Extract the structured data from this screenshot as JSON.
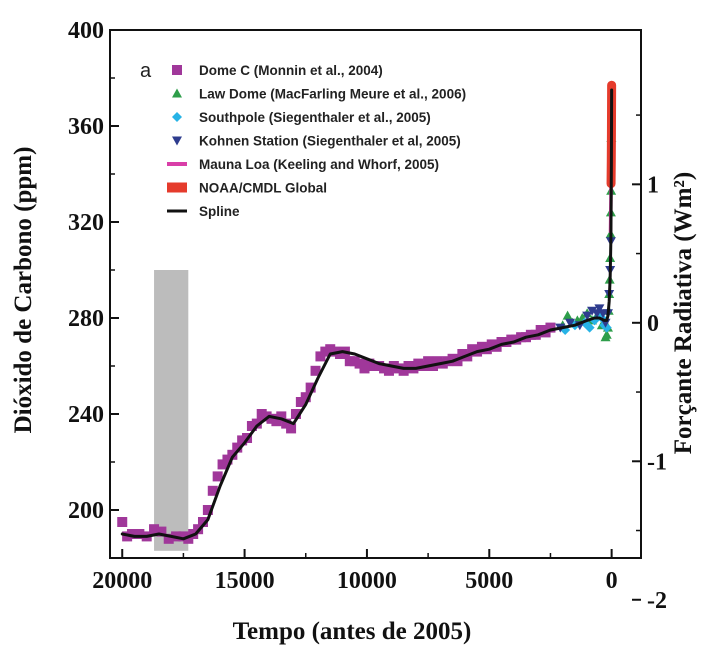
{
  "chart_data": {
    "type": "scatter",
    "panel_label": "a",
    "xlabel": "Tempo (antes de 2005)",
    "ylabel": "Dióxido de Carbono (ppm)",
    "y2label": "Forçante Radiativa (Wm²)",
    "xlim": [
      20500,
      -1200
    ],
    "ylim": [
      180,
      400
    ],
    "y2lim": [
      -2.45,
      1.95
    ],
    "x_ticks": [
      "20000",
      "15000",
      "10000",
      "5000",
      "0"
    ],
    "x_tick_values": [
      20000,
      15000,
      10000,
      5000,
      0
    ],
    "y_ticks": [
      "200",
      "240",
      "280",
      "320",
      "360",
      "400"
    ],
    "y_tick_values": [
      200,
      240,
      280,
      320,
      360,
      400
    ],
    "y2_ticks": [
      "-2",
      "-1",
      "0",
      "1"
    ],
    "y2_tick_values": [
      -2,
      -1,
      0,
      1
    ],
    "y2_zero_at_ppm": 278,
    "y2_ppm_per_unit": 57.7,
    "grid": false,
    "legend_position": "top-left",
    "legend": [
      {
        "label": "Dome C (Monnin et al., 2004)",
        "marker": "square",
        "color": "#a0379a"
      },
      {
        "label": "Law Dome (MacFarling Meure et al., 2006)",
        "marker": "triangle-up",
        "color": "#2e9e4a"
      },
      {
        "label": "Southpole (Siegenthaler et al., 2005)",
        "marker": "diamond",
        "color": "#27b3e6"
      },
      {
        "label": "Kohnen Station (Siegenthaler et al, 2005)",
        "marker": "triangle-down",
        "color": "#2e3c8e"
      },
      {
        "label": "Mauna Loa (Keeling and Whorf, 2005)",
        "marker": "line",
        "color": "#d93ea8"
      },
      {
        "label": "NOAA/CMDL Global",
        "marker": "band",
        "color": "#e53b2c"
      },
      {
        "label": "Spline",
        "marker": "line",
        "color": "#111111"
      }
    ],
    "shaded_region": {
      "x": [
        18700,
        17300
      ],
      "y": [
        183,
        300
      ],
      "color": "#bcbcbc"
    },
    "series": [
      {
        "name": "Dome C (Monnin et al., 2004)",
        "color": "#a0379a",
        "x": [
          20000,
          19800,
          19600,
          19300,
          19000,
          18700,
          18400,
          18100,
          17800,
          17500,
          17300,
          17100,
          16900,
          16700,
          16500,
          16300,
          16100,
          15900,
          15700,
          15500,
          15300,
          15100,
          14900,
          14700,
          14500,
          14300,
          14100,
          13900,
          13700,
          13500,
          13300,
          13100,
          12900,
          12700,
          12500,
          12300,
          12100,
          11900,
          11700,
          11500,
          11300,
          11100,
          10900,
          10700,
          10500,
          10300,
          10100,
          9900,
          9700,
          9500,
          9300,
          9100,
          8900,
          8700,
          8500,
          8300,
          8100,
          7900,
          7700,
          7500,
          7300,
          7100,
          6900,
          6700,
          6500,
          6300,
          6100,
          5900,
          5700,
          5500,
          5300,
          5100,
          4900,
          4700,
          4500,
          4300,
          4100,
          3900,
          3700,
          3500,
          3300,
          3100,
          2900,
          2700,
          2500
        ],
        "y": [
          195,
          189,
          190,
          190,
          189,
          192,
          191,
          188,
          189,
          189,
          188,
          190,
          192,
          195,
          200,
          208,
          214,
          219,
          221,
          223,
          226,
          229,
          230,
          235,
          236,
          240,
          239,
          238,
          237,
          239,
          236,
          234,
          240,
          245,
          247,
          251,
          258,
          264,
          266,
          267,
          266,
          265,
          266,
          262,
          262,
          261,
          259,
          261,
          260,
          260,
          259,
          258,
          260,
          259,
          258,
          260,
          259,
          261,
          260,
          262,
          260,
          262,
          261,
          262,
          263,
          262,
          265,
          264,
          267,
          266,
          268,
          267,
          269,
          268,
          270,
          270,
          271,
          271,
          272,
          272,
          273,
          273,
          275,
          274,
          276
        ]
      },
      {
        "name": "Law Dome (MacFarling Meure et al., 2006)",
        "color": "#2e9e4a",
        "x": [
          2000,
          1800,
          1600,
          1400,
          1200,
          1000,
          800,
          600,
          400,
          300,
          250,
          200,
          150,
          120,
          100,
          80,
          60,
          40,
          30,
          20,
          10
        ],
        "y": [
          277,
          281,
          278,
          279,
          280,
          282,
          279,
          281,
          277,
          278,
          272,
          273,
          276,
          283,
          290,
          296,
          305,
          315,
          324,
          333,
          355
        ]
      },
      {
        "name": "Southpole (Siegenthaler et al., 2005)",
        "color": "#27b3e6",
        "x": [
          1900,
          1500,
          1100,
          900,
          700,
          500,
          400,
          300,
          200
        ],
        "y": [
          275,
          277,
          278,
          276,
          279,
          282,
          280,
          277,
          276
        ]
      },
      {
        "name": "Kohnen Station (Siegenthaler et al, 2005)",
        "color": "#2e3c8e",
        "x": [
          2100,
          1700,
          1300,
          1000,
          800,
          600,
          500,
          350,
          250,
          150,
          100,
          60,
          30
        ],
        "y": [
          276,
          278,
          277,
          281,
          283,
          282,
          284,
          282,
          278,
          282,
          290,
          300,
          312
        ]
      },
      {
        "name": "Mauna Loa (Keeling and Whorf, 2005)",
        "color": "#d93ea8",
        "x": [
          47,
          40,
          30,
          20,
          10,
          0
        ],
        "y": [
          316,
          321,
          329,
          339,
          353,
          372
        ]
      },
      {
        "name": "NOAA/CMDL Global",
        "color": "#e53b2c",
        "x": [
          24,
          15,
          8,
          0
        ],
        "y": [
          336,
          345,
          357,
          377
        ]
      },
      {
        "name": "Spline",
        "color": "#111111",
        "x": [
          20000,
          19500,
          19000,
          18500,
          18000,
          17500,
          17000,
          16500,
          16000,
          15500,
          15000,
          14500,
          14000,
          13500,
          13000,
          12500,
          12000,
          11500,
          11000,
          10500,
          10000,
          9500,
          9000,
          8500,
          8000,
          7500,
          7000,
          6500,
          6000,
          5500,
          5000,
          4500,
          4000,
          3500,
          3000,
          2500,
          2000,
          1500,
          1000,
          700,
          500,
          300,
          200,
          150,
          100,
          60,
          30,
          10,
          0
        ],
        "y": [
          190,
          189,
          189,
          190,
          189,
          188,
          190,
          196,
          210,
          222,
          228,
          235,
          239,
          238,
          236,
          244,
          255,
          265,
          266,
          265,
          263,
          261,
          260,
          259,
          259,
          260,
          261,
          262,
          264,
          266,
          267,
          269,
          270,
          272,
          273,
          275,
          276,
          277,
          279,
          280,
          280,
          279,
          279,
          281,
          287,
          297,
          313,
          345,
          375
        ]
      }
    ]
  }
}
